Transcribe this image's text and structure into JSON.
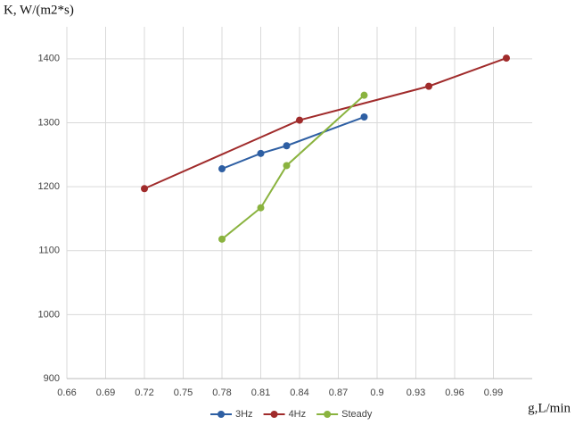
{
  "chart_data": {
    "type": "line",
    "y_label": "K, W/(m2*s)",
    "x_label": "g,L/min",
    "xlim": [
      0.66,
      1.02
    ],
    "xticks": [
      0.66,
      0.69,
      0.72,
      0.75,
      0.78,
      0.81,
      0.84,
      0.87,
      0.9,
      0.93,
      0.96,
      0.99
    ],
    "ylim": [
      900,
      1450
    ],
    "yticks": [
      900,
      1000,
      1100,
      1200,
      1300,
      1400
    ],
    "grid": true,
    "legend": "bottom",
    "series": [
      {
        "name": "3Hz",
        "color": "#2e5fa3",
        "x": [
          0.78,
          0.81,
          0.83,
          0.89
        ],
        "values": [
          1228,
          1252,
          1264,
          1309
        ]
      },
      {
        "name": "4Hz",
        "color": "#a02b2b",
        "x": [
          0.72,
          0.84,
          0.94,
          1.0
        ],
        "values": [
          1197,
          1304,
          1357,
          1401
        ]
      },
      {
        "name": "Steady",
        "color": "#8ab33f",
        "x": [
          0.78,
          0.81,
          0.83,
          0.89
        ],
        "values": [
          1118,
          1167,
          1233,
          1343
        ]
      }
    ]
  }
}
